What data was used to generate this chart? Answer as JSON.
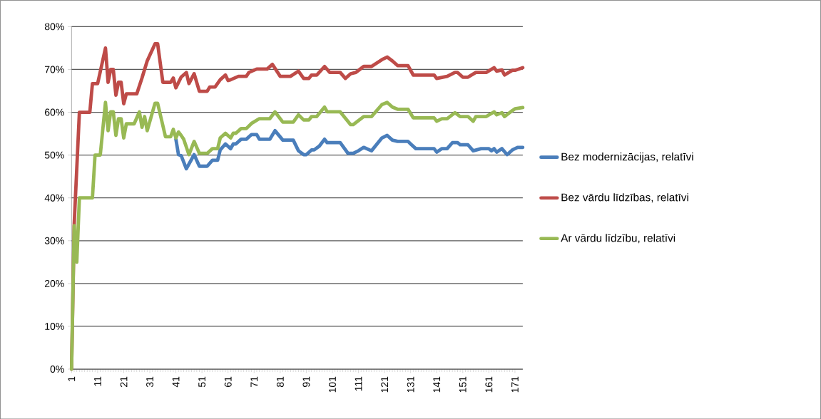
{
  "chart_data": {
    "type": "line",
    "xlim": [
      1,
      174
    ],
    "xticks": [
      1,
      11,
      21,
      31,
      41,
      51,
      61,
      71,
      81,
      91,
      101,
      111,
      121,
      131,
      141,
      151,
      161,
      171
    ],
    "ylim": [
      0,
      80
    ],
    "yticks": [
      {
        "value": 0,
        "label": "0%"
      },
      {
        "value": 10,
        "label": "10%"
      },
      {
        "value": 20,
        "label": "20%"
      },
      {
        "value": 30,
        "label": "30%"
      },
      {
        "value": 40,
        "label": "40%"
      },
      {
        "value": 50,
        "label": "50%"
      },
      {
        "value": 60,
        "label": "60%"
      },
      {
        "value": 70,
        "label": "70%"
      },
      {
        "value": 80,
        "label": "80%"
      }
    ],
    "grid": "y",
    "legend": "right",
    "series": [
      {
        "name": "Bez modernizācijas, relatīvi",
        "color": "#4a7ebb",
        "x": [
          41,
          42,
          43,
          45,
          48,
          50,
          53,
          55,
          57,
          58,
          60,
          62,
          63,
          64,
          66,
          68,
          70,
          72,
          73,
          77,
          79,
          82,
          86,
          88,
          90,
          91,
          93,
          94,
          96,
          98,
          99,
          104,
          107,
          109,
          111,
          113,
          116,
          120,
          122,
          124,
          126,
          130,
          131,
          133,
          140,
          141,
          143,
          145,
          147,
          149,
          150,
          153,
          155,
          158,
          161,
          162,
          163,
          164,
          166,
          168,
          170,
          172,
          174
        ],
        "values": [
          53.7,
          50.1,
          49.9,
          46.8,
          50.1,
          47.4,
          47.4,
          48.8,
          48.8,
          51.2,
          52.6,
          51.5,
          52.6,
          52.6,
          53.7,
          53.7,
          54.8,
          54.8,
          53.7,
          53.7,
          55.7,
          53.5,
          53.5,
          51,
          50.1,
          50.1,
          51.2,
          51.2,
          52.1,
          53.7,
          52.9,
          52.9,
          50.4,
          50.4,
          51,
          51.8,
          51,
          54,
          54.6,
          53.5,
          53.2,
          53.2,
          52.6,
          51.5,
          51.5,
          50.7,
          51.5,
          51.5,
          52.9,
          52.9,
          52.4,
          52.4,
          51,
          51.5,
          51.5,
          51,
          51.5,
          50.7,
          51.5,
          50.1,
          51.2,
          51.8,
          51.8
        ]
      },
      {
        "name": "Bez vārdu līdzības, relatīvi",
        "color": "#be4b48",
        "x": [
          1,
          2,
          4,
          8,
          9,
          11,
          14,
          15,
          16,
          17,
          18,
          19,
          20,
          21,
          22,
          26,
          28,
          30,
          33,
          34,
          36,
          39,
          40,
          41,
          43,
          45,
          46,
          48,
          50,
          53,
          54,
          56,
          58,
          60,
          61,
          62,
          65,
          68,
          69,
          72,
          76,
          78,
          81,
          85,
          88,
          90,
          92,
          93,
          95,
          98,
          100,
          104,
          106,
          108,
          110,
          113,
          116,
          120,
          122,
          124,
          126,
          130,
          132,
          140,
          141,
          145,
          148,
          149,
          151,
          153,
          156,
          160,
          163,
          164,
          166,
          167,
          170,
          171,
          174
        ],
        "values": [
          0,
          33.8,
          60,
          60,
          66.7,
          66.7,
          75,
          67,
          70,
          70,
          64,
          67,
          67,
          62,
          64.3,
          64.3,
          68,
          72,
          76,
          76,
          67,
          67,
          68,
          65.7,
          68.2,
          69.3,
          66.7,
          69,
          64.9,
          64.9,
          65.9,
          65.9,
          67.6,
          68.7,
          67.4,
          67.6,
          68.4,
          68.4,
          69.3,
          70.1,
          70.1,
          71.2,
          68.4,
          68.4,
          69.6,
          67.9,
          67.9,
          68.7,
          68.7,
          70.7,
          69.3,
          69.3,
          67.9,
          69,
          69.3,
          70.7,
          70.7,
          72.3,
          72.9,
          72,
          70.9,
          70.9,
          68.7,
          68.7,
          67.9,
          68.4,
          69.3,
          69.3,
          68.2,
          68.2,
          69.3,
          69.3,
          70.4,
          69.6,
          69.9,
          68.7,
          69.8,
          69.8,
          70.4
        ]
      },
      {
        "name": "Ar vārdu līdzību, relatīvi",
        "color": "#98b954",
        "x": [
          1,
          2,
          3,
          4,
          9,
          10,
          12,
          14,
          15,
          16,
          17,
          18,
          19,
          20,
          21,
          22,
          25,
          27,
          28,
          29,
          30,
          33,
          34,
          37,
          39,
          40,
          41,
          42,
          43,
          44,
          46,
          48,
          50,
          53,
          55,
          57,
          58,
          60,
          62,
          63,
          64,
          66,
          68,
          70,
          73,
          77,
          79,
          82,
          86,
          88,
          90,
          92,
          93,
          95,
          98,
          99,
          104,
          108,
          109,
          113,
          116,
          120,
          122,
          124,
          126,
          130,
          132,
          140,
          141,
          143,
          145,
          148,
          150,
          153,
          155,
          156,
          160,
          163,
          164,
          166,
          167,
          170,
          171,
          174
        ],
        "values": [
          0,
          33.5,
          25,
          40,
          40,
          50,
          50,
          62.3,
          55.7,
          60.1,
          60.1,
          54.6,
          58.5,
          58.5,
          54,
          57.3,
          57.3,
          60.1,
          56.5,
          59,
          55.7,
          62.1,
          62.1,
          54.3,
          54.3,
          56,
          54,
          55.4,
          54.6,
          53.7,
          50.1,
          53.2,
          50.4,
          50.4,
          51.5,
          51.5,
          54,
          55.1,
          54,
          55.1,
          55.1,
          56.2,
          56.2,
          57.4,
          58.5,
          58.5,
          60.1,
          57.7,
          57.7,
          59.4,
          58.2,
          58.2,
          59,
          59,
          61.2,
          60.1,
          60.1,
          57.1,
          57.1,
          59,
          59,
          61.8,
          62.3,
          61.2,
          60.7,
          60.7,
          58.7,
          58.7,
          57.9,
          58.5,
          58.5,
          59.9,
          59,
          59,
          57.9,
          59,
          59,
          60.1,
          59.4,
          59.9,
          59,
          60.4,
          60.8,
          61.1
        ]
      }
    ]
  }
}
